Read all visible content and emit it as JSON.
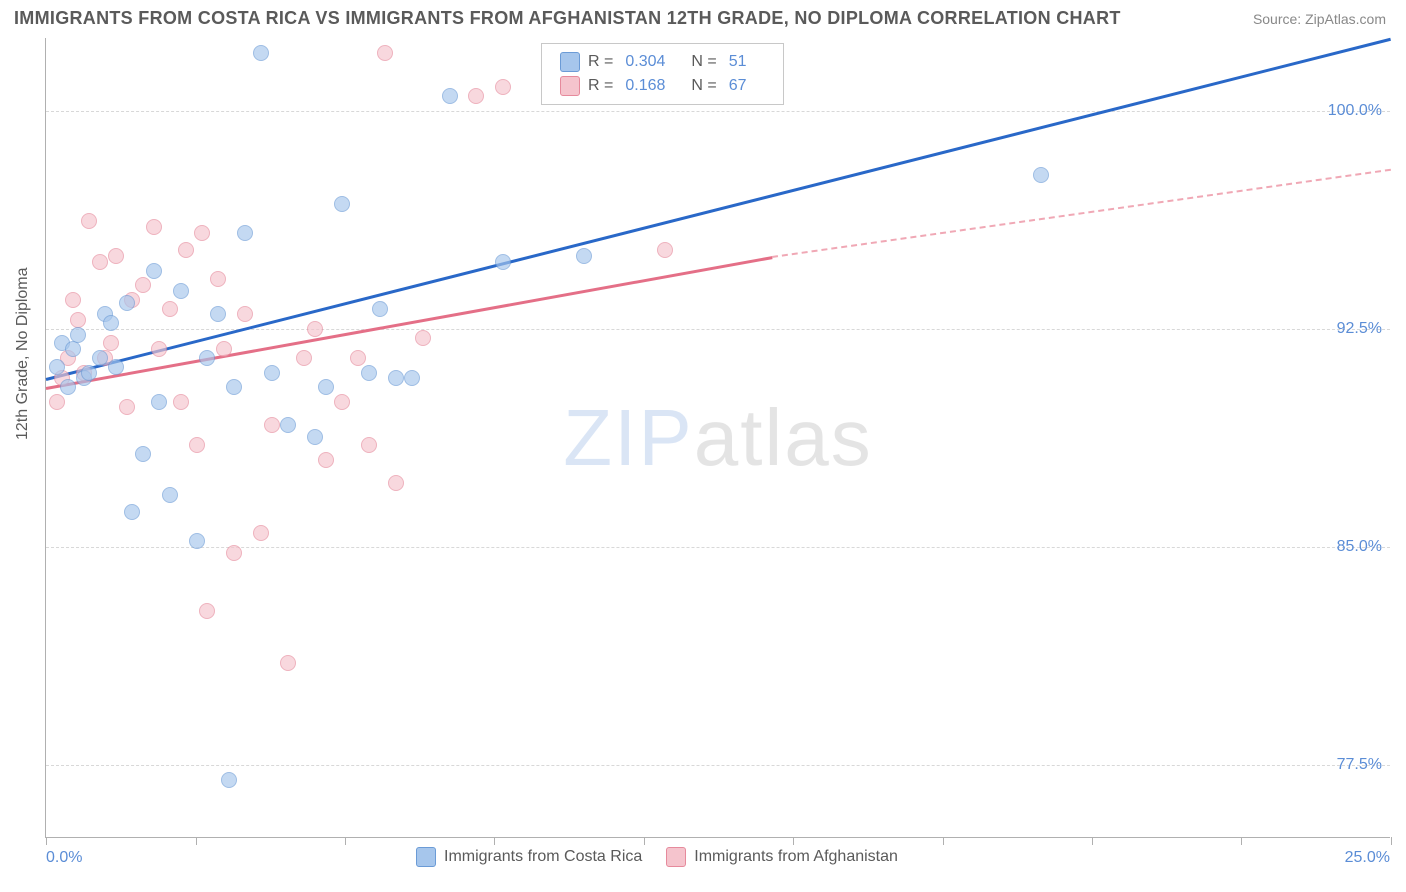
{
  "header": {
    "title": "IMMIGRANTS FROM COSTA RICA VS IMMIGRANTS FROM AFGHANISTAN 12TH GRADE, NO DIPLOMA CORRELATION CHART",
    "source": "Source: ZipAtlas.com"
  },
  "watermark": {
    "zip": "ZIP",
    "atlas": "atlas"
  },
  "chart": {
    "type": "scatter",
    "background_color": "#ffffff",
    "grid_color": "#d8d8d8",
    "axis_color": "#b0b0b0",
    "y_axis_title": "12th Grade, No Diploma",
    "xlim": [
      0,
      25
    ],
    "ylim": [
      75,
      102.5
    ],
    "y_ticks": [
      77.5,
      85.0,
      92.5,
      100.0
    ],
    "y_tick_labels": [
      "77.5%",
      "85.0%",
      "92.5%",
      "100.0%"
    ],
    "x_ticks": [
      0,
      2.78,
      5.56,
      8.33,
      11.11,
      13.89,
      16.67,
      19.44,
      22.22,
      25
    ],
    "x_label_min": "0.0%",
    "x_label_max": "25.0%",
    "series_a": {
      "name": "Immigrants from Costa Rica",
      "color_fill": "#a6c6ec",
      "color_stroke": "#6b9bd6",
      "marker_radius": 8,
      "R": "0.304",
      "N": "51",
      "points": [
        [
          0.2,
          91.2
        ],
        [
          0.3,
          92.0
        ],
        [
          0.4,
          90.5
        ],
        [
          0.5,
          91.8
        ],
        [
          0.6,
          92.3
        ],
        [
          0.7,
          90.8
        ],
        [
          0.8,
          91.0
        ],
        [
          1.0,
          91.5
        ],
        [
          1.1,
          93.0
        ],
        [
          1.2,
          92.7
        ],
        [
          1.3,
          91.2
        ],
        [
          1.5,
          93.4
        ],
        [
          1.6,
          86.2
        ],
        [
          1.8,
          88.2
        ],
        [
          2.0,
          94.5
        ],
        [
          2.1,
          90.0
        ],
        [
          2.3,
          86.8
        ],
        [
          2.5,
          93.8
        ],
        [
          2.8,
          85.2
        ],
        [
          3.0,
          91.5
        ],
        [
          3.2,
          93.0
        ],
        [
          3.4,
          77.0
        ],
        [
          3.5,
          90.5
        ],
        [
          3.7,
          95.8
        ],
        [
          4.0,
          102.0
        ],
        [
          4.2,
          91.0
        ],
        [
          4.5,
          89.2
        ],
        [
          5.0,
          88.8
        ],
        [
          5.2,
          90.5
        ],
        [
          5.5,
          96.8
        ],
        [
          6.0,
          91.0
        ],
        [
          6.2,
          93.2
        ],
        [
          6.5,
          90.8
        ],
        [
          6.8,
          90.8
        ],
        [
          7.5,
          100.5
        ],
        [
          8.5,
          94.8
        ],
        [
          10.0,
          95.0
        ],
        [
          18.5,
          97.8
        ]
      ],
      "trend": {
        "x1": 0,
        "y1": 90.8,
        "x2": 25,
        "y2": 102.5,
        "color": "#2968c8",
        "width": 3
      }
    },
    "series_b": {
      "name": "Immigrants from Afghanistan",
      "color_fill": "#f5c4cd",
      "color_stroke": "#e68a9c",
      "marker_radius": 8,
      "R": "0.168",
      "N": "67",
      "points": [
        [
          0.2,
          90.0
        ],
        [
          0.3,
          90.8
        ],
        [
          0.4,
          91.5
        ],
        [
          0.5,
          93.5
        ],
        [
          0.6,
          92.8
        ],
        [
          0.7,
          91.0
        ],
        [
          0.8,
          96.2
        ],
        [
          1.0,
          94.8
        ],
        [
          1.1,
          91.5
        ],
        [
          1.2,
          92.0
        ],
        [
          1.3,
          95.0
        ],
        [
          1.5,
          89.8
        ],
        [
          1.6,
          93.5
        ],
        [
          1.8,
          94.0
        ],
        [
          2.0,
          96.0
        ],
        [
          2.1,
          91.8
        ],
        [
          2.3,
          93.2
        ],
        [
          2.5,
          90.0
        ],
        [
          2.6,
          95.2
        ],
        [
          2.8,
          88.5
        ],
        [
          2.9,
          95.8
        ],
        [
          3.0,
          82.8
        ],
        [
          3.2,
          94.2
        ],
        [
          3.3,
          91.8
        ],
        [
          3.5,
          84.8
        ],
        [
          3.7,
          93.0
        ],
        [
          4.0,
          85.5
        ],
        [
          4.2,
          89.2
        ],
        [
          4.5,
          81.0
        ],
        [
          4.8,
          91.5
        ],
        [
          5.0,
          92.5
        ],
        [
          5.2,
          88.0
        ],
        [
          5.5,
          90.0
        ],
        [
          5.8,
          91.5
        ],
        [
          6.0,
          88.5
        ],
        [
          6.3,
          102.0
        ],
        [
          6.5,
          87.2
        ],
        [
          7.0,
          92.2
        ],
        [
          8.0,
          100.5
        ],
        [
          8.5,
          100.8
        ],
        [
          11.5,
          95.2
        ]
      ],
      "trend_solid": {
        "x1": 0,
        "y1": 90.5,
        "x2": 13.5,
        "y2": 95.0,
        "color": "#e46f87",
        "width": 3
      },
      "trend_dash": {
        "x1": 13.5,
        "y1": 95.0,
        "x2": 25,
        "y2": 98.0,
        "color": "#f0a8b5"
      }
    },
    "legend_bottom": {
      "a": "Immigrants from Costa Rica",
      "b": "Immigrants from Afghanistan"
    },
    "legend_box": {
      "r_label": "R =",
      "n_label": "N ="
    }
  }
}
